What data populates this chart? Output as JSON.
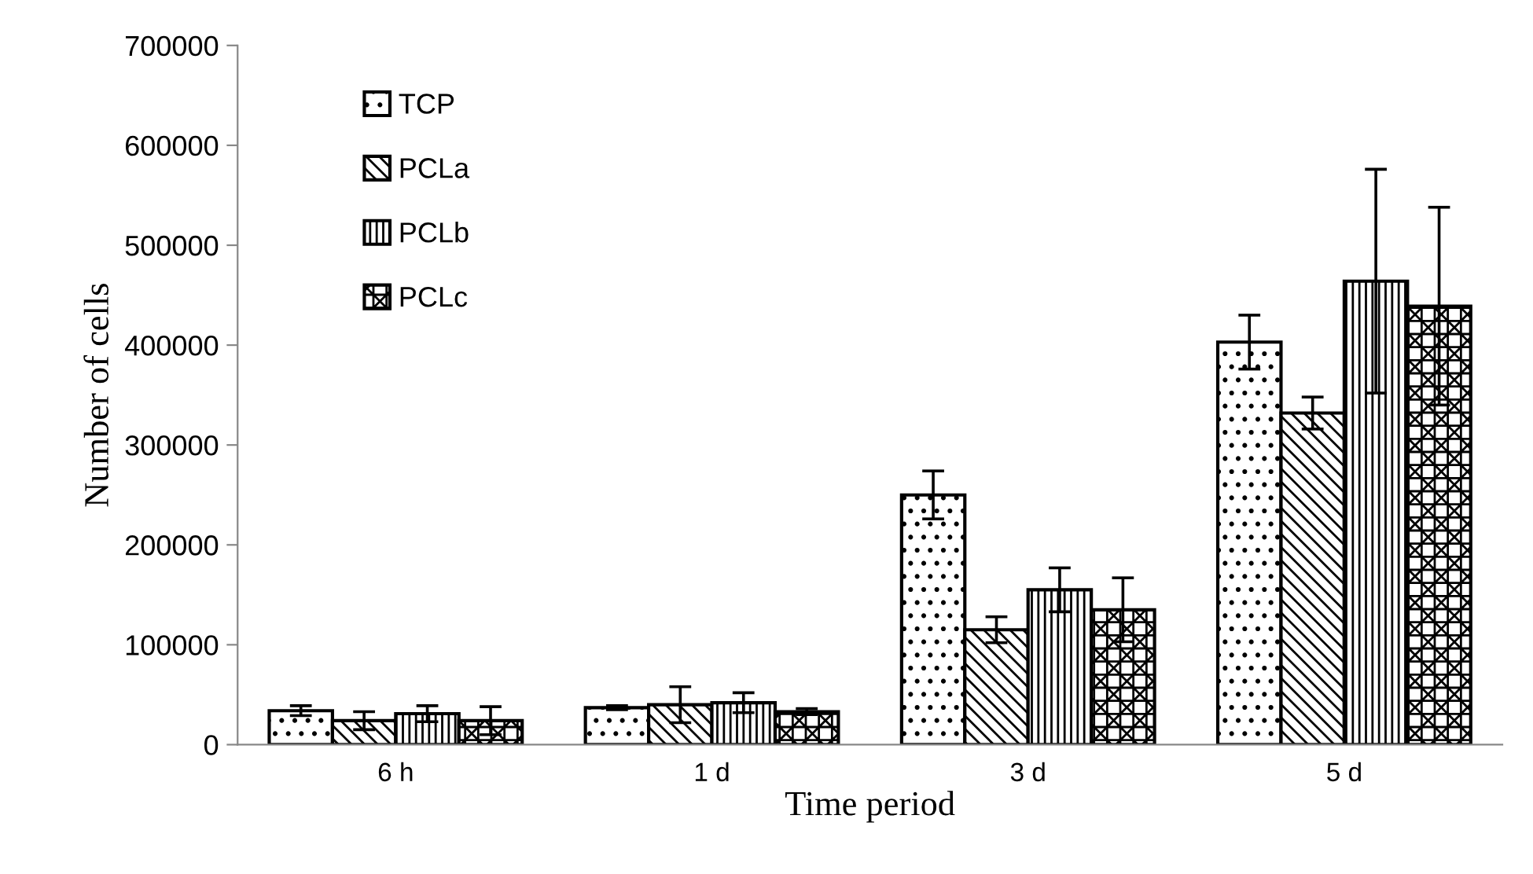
{
  "chart_data": {
    "type": "bar",
    "xlabel": "Time period",
    "ylabel": "Number of cells",
    "categories": [
      "6 h",
      "1 d",
      "3 d",
      "5 d"
    ],
    "series": [
      {
        "name": "TCP",
        "color": "#000000",
        "values": [
          34000,
          37000,
          250000,
          403000
        ],
        "errors": [
          5000,
          2000,
          24000,
          27000
        ]
      },
      {
        "name": "PCLa",
        "color": "#000000",
        "values": [
          24000,
          40000,
          115000,
          332000
        ],
        "errors": [
          9000,
          18000,
          13000,
          16000
        ]
      },
      {
        "name": "PCLb",
        "color": "#000000",
        "values": [
          31000,
          42000,
          155000,
          464000
        ],
        "errors": [
          8000,
          10000,
          22000,
          112000
        ]
      },
      {
        "name": "PCLc",
        "color": "#000000",
        "values": [
          24000,
          33000,
          135000,
          439000
        ],
        "errors": [
          14000,
          3000,
          32000,
          99000
        ]
      }
    ],
    "ylim": [
      0,
      700000
    ],
    "yticks": [
      0,
      100000,
      200000,
      300000,
      400000,
      500000,
      600000,
      700000
    ],
    "grid": false,
    "legend": "top left"
  }
}
